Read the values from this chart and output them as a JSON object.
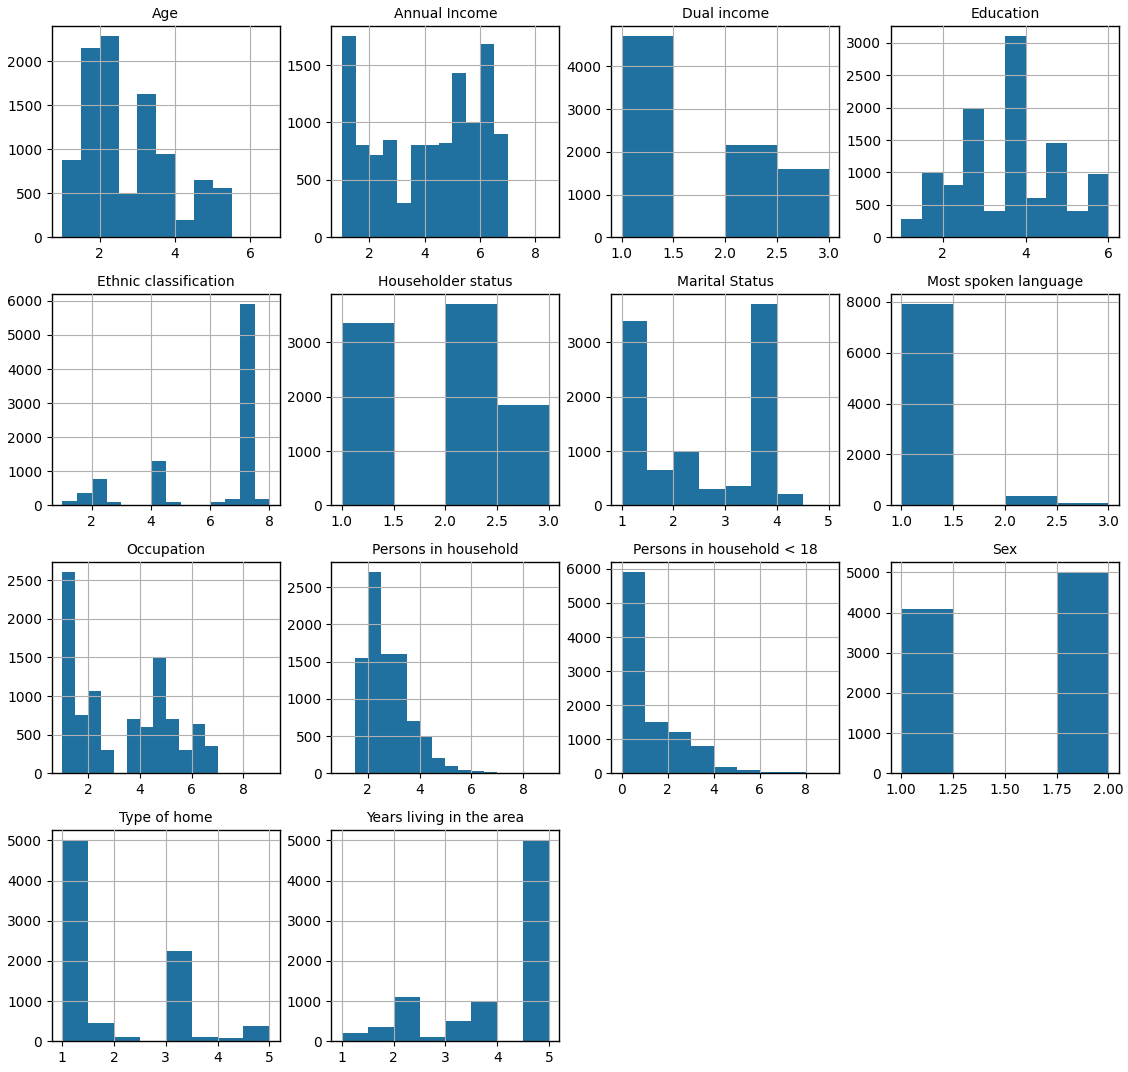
{
  "subplots": [
    {
      "title": "Age",
      "bin_edges": [
        1.0,
        1.5,
        2.0,
        2.5,
        3.0,
        3.5,
        4.0,
        4.5,
        5.0,
        5.5,
        6.0,
        6.5
      ],
      "counts": [
        880,
        2150,
        2280,
        500,
        1630,
        940,
        200,
        650,
        560,
        0,
        0
      ]
    },
    {
      "title": "Annual Income",
      "bin_edges": [
        1.0,
        1.5,
        2.0,
        2.5,
        3.0,
        3.5,
        4.0,
        4.5,
        5.0,
        5.5,
        6.0,
        6.5,
        7.0,
        7.5,
        8.0,
        8.5
      ],
      "counts": [
        1750,
        800,
        720,
        850,
        300,
        800,
        800,
        820,
        1430,
        1000,
        1680,
        900,
        0,
        0,
        0
      ]
    },
    {
      "title": "Dual income",
      "bin_edges": [
        1.0,
        1.5,
        2.0,
        2.5,
        3.0
      ],
      "counts": [
        4700,
        0,
        2150,
        1600
      ]
    },
    {
      "title": "Education",
      "bin_edges": [
        1.0,
        1.5,
        2.0,
        2.5,
        3.0,
        3.5,
        4.0,
        4.5,
        5.0,
        5.5,
        6.0
      ],
      "counts": [
        280,
        1000,
        800,
        2000,
        400,
        3100,
        600,
        1450,
        400,
        980
      ]
    },
    {
      "title": "Ethnic classification",
      "bin_edges": [
        1.0,
        1.5,
        2.0,
        2.5,
        3.0,
        3.5,
        4.0,
        4.5,
        5.0,
        5.5,
        6.0,
        6.5,
        7.0,
        7.5,
        8.0
      ],
      "counts": [
        120,
        350,
        780,
        100,
        0,
        0,
        1300,
        100,
        0,
        0,
        100,
        200,
        5900,
        200
      ]
    },
    {
      "title": "Householder status",
      "bin_edges": [
        1.0,
        1.5,
        2.0,
        2.5,
        3.0
      ],
      "counts": [
        3350,
        0,
        3700,
        1850
      ]
    },
    {
      "title": "Marital Status",
      "bin_edges": [
        1.0,
        1.5,
        2.0,
        2.5,
        3.0,
        3.5,
        4.0,
        4.5,
        5.0
      ],
      "counts": [
        3400,
        650,
        1000,
        300,
        350,
        3700,
        200,
        0
      ]
    },
    {
      "title": "Most spoken language",
      "bin_edges": [
        1.0,
        1.5,
        2.0,
        2.5,
        3.0
      ],
      "counts": [
        7900,
        0,
        350,
        100
      ]
    },
    {
      "title": "Occupation",
      "bin_edges": [
        1.0,
        1.5,
        2.0,
        2.5,
        3.0,
        3.5,
        4.0,
        4.5,
        5.0,
        5.5,
        6.0,
        6.5,
        7.0,
        7.5,
        8.0,
        8.5,
        9.0
      ],
      "counts": [
        2600,
        760,
        1060,
        300,
        0,
        700,
        600,
        1500,
        700,
        300,
        640,
        350,
        0,
        0,
        0,
        0
      ]
    },
    {
      "title": "Persons in household",
      "bin_edges": [
        1.0,
        1.5,
        2.0,
        2.5,
        3.0,
        3.5,
        4.0,
        4.5,
        5.0,
        5.5,
        6.0,
        6.5,
        7.0,
        7.5,
        8.0,
        8.5,
        9.0
      ],
      "counts": [
        0,
        1550,
        2700,
        1600,
        1600,
        700,
        500,
        200,
        100,
        50,
        30,
        20,
        0,
        0,
        0,
        0
      ]
    },
    {
      "title": "Persons in household < 18",
      "bin_edges": [
        0,
        1,
        2,
        3,
        4,
        5,
        6,
        7,
        8,
        9
      ],
      "counts": [
        5900,
        1500,
        1200,
        800,
        200,
        100,
        50,
        30,
        0
      ]
    },
    {
      "title": "Sex",
      "bin_edges": [
        1.0,
        1.25,
        1.5,
        1.75,
        2.0
      ],
      "counts": [
        4100,
        0,
        0,
        5000
      ]
    },
    {
      "title": "Type of home",
      "bin_edges": [
        1.0,
        1.5,
        2.0,
        2.5,
        3.0,
        3.5,
        4.0,
        4.5,
        5.0
      ],
      "counts": [
        5000,
        450,
        100,
        0,
        2250,
        100,
        80,
        380
      ]
    },
    {
      "title": "Years living in the area",
      "bin_edges": [
        1.0,
        1.5,
        2.0,
        2.5,
        3.0,
        3.5,
        4.0,
        4.5,
        5.0
      ],
      "counts": [
        200,
        350,
        1100,
        100,
        500,
        1000,
        0,
        5000
      ]
    }
  ],
  "bar_color": "#2070a0",
  "grid_color": "#b0b0b0",
  "fig_width": 11.28,
  "fig_height": 10.72,
  "dpi": 100,
  "nrows": 4,
  "ncols": 4
}
